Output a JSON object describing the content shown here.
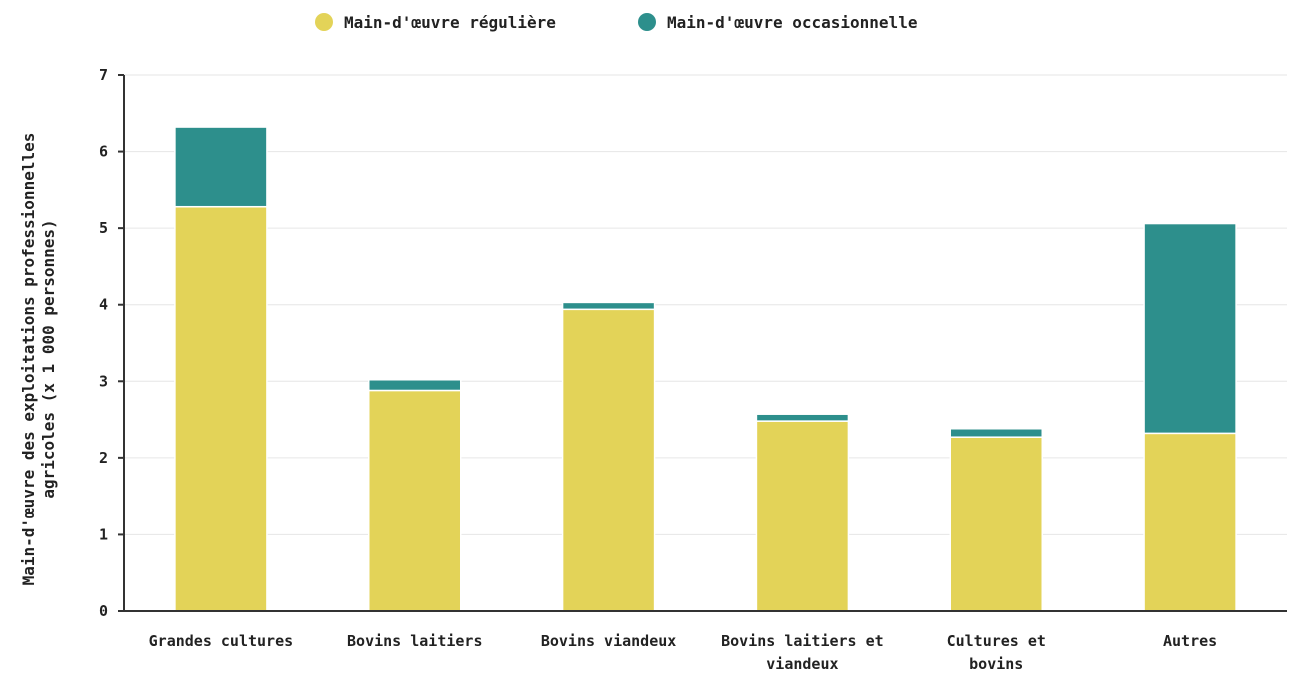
{
  "chart_data": {
    "type": "bar",
    "stacked": true,
    "categories": [
      "Grandes cultures",
      "Bovins laitiers",
      "Bovins viandeux",
      "Bovins laitiers et viandeux",
      "Cultures et bovins",
      "Autres"
    ],
    "series": [
      {
        "name": "Main-d'œuvre régulière",
        "color": "#e3d358",
        "values": [
          5.28,
          2.88,
          3.94,
          2.48,
          2.27,
          2.32
        ]
      },
      {
        "name": "Main-d'œuvre occasionnelle",
        "color": "#2d8f8c",
        "values": [
          1.04,
          0.14,
          0.09,
          0.09,
          0.11,
          2.74
        ]
      }
    ],
    "ylabel": "Main-d'œuvre des exploitations professionnelles agricoles (x 1 000 personnes)",
    "ylabel_lines": [
      "Main-d'œuvre des exploitations professionnelles",
      "agricoles (x 1 000 personnes)"
    ],
    "xlabel": "",
    "ylim": [
      0,
      7
    ],
    "yticks": [
      0,
      1,
      2,
      3,
      4,
      5,
      6,
      7
    ],
    "grid": true,
    "legend_position": "top"
  }
}
